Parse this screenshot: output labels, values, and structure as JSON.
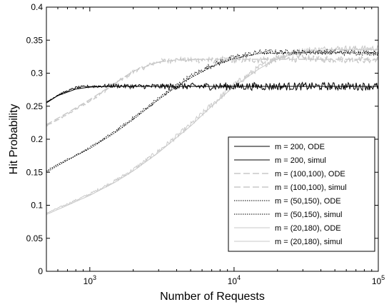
{
  "chart_data": {
    "type": "line",
    "xlabel": "Number of Requests",
    "ylabel": "Hit Probability",
    "xscale": "log",
    "xlim": [
      500,
      100000
    ],
    "ylim": [
      0,
      0.4
    ],
    "grid": false,
    "legend_position": "bottom-right",
    "x_ticks": [
      {
        "value": 1000,
        "base": "10",
        "exp": "3"
      },
      {
        "value": 10000,
        "base": "10",
        "exp": "4"
      },
      {
        "value": 100000,
        "base": "10",
        "exp": "5"
      }
    ],
    "y_ticks": [
      "0",
      "0.05",
      "0.1",
      "0.15",
      "0.2",
      "0.25",
      "0.3",
      "0.35",
      "0.4"
    ],
    "series": [
      {
        "name": "m = 200, ODE",
        "color": "#000000",
        "dash": "solid",
        "noise": 0,
        "x": [
          500,
          600,
          800,
          1000,
          1500,
          2000,
          3000,
          5000,
          10000,
          30000,
          100000
        ],
        "y": [
          0.255,
          0.266,
          0.276,
          0.279,
          0.28,
          0.28,
          0.28,
          0.28,
          0.28,
          0.28,
          0.28
        ]
      },
      {
        "name": "m = 200, simul",
        "color": "#000000",
        "dash": "solid",
        "noise": 0.006,
        "x": [
          500,
          600,
          800,
          1000,
          1500,
          2000,
          3000,
          5000,
          10000,
          30000,
          100000
        ],
        "y": [
          0.256,
          0.267,
          0.278,
          0.28,
          0.281,
          0.28,
          0.28,
          0.28,
          0.28,
          0.28,
          0.28
        ]
      },
      {
        "name": "m = (100,100), ODE",
        "color": "#c8c8c8",
        "dash": "long",
        "noise": 0,
        "x": [
          500,
          700,
          1000,
          1500,
          2000,
          3000,
          4000,
          6000,
          10000,
          30000,
          100000
        ],
        "y": [
          0.222,
          0.24,
          0.26,
          0.285,
          0.303,
          0.317,
          0.32,
          0.321,
          0.321,
          0.321,
          0.321
        ]
      },
      {
        "name": "m = (100,100), simul",
        "color": "#c8c8c8",
        "dash": "long",
        "noise": 0.005,
        "x": [
          500,
          700,
          1000,
          1500,
          2000,
          3000,
          4000,
          6000,
          10000,
          30000,
          100000
        ],
        "y": [
          0.22,
          0.238,
          0.258,
          0.284,
          0.302,
          0.318,
          0.32,
          0.32,
          0.32,
          0.322,
          0.32
        ]
      },
      {
        "name": "m = (50,150), ODE",
        "color": "#000000",
        "dash": "dot",
        "noise": 0,
        "x": [
          500,
          600,
          800,
          1000,
          1500,
          2000,
          3000,
          4000,
          5000,
          7000,
          10000,
          15000,
          30000,
          100000
        ],
        "y": [
          0.15,
          0.16,
          0.175,
          0.186,
          0.21,
          0.23,
          0.26,
          0.28,
          0.293,
          0.31,
          0.322,
          0.33,
          0.331,
          0.331
        ]
      },
      {
        "name": "m = (50,150), simul",
        "color": "#000000",
        "dash": "dot",
        "noise": 0.004,
        "x": [
          500,
          600,
          800,
          1000,
          1500,
          2000,
          3000,
          4000,
          5000,
          7000,
          10000,
          15000,
          30000,
          100000
        ],
        "y": [
          0.152,
          0.162,
          0.176,
          0.187,
          0.212,
          0.232,
          0.262,
          0.282,
          0.295,
          0.312,
          0.324,
          0.332,
          0.332,
          0.331
        ]
      },
      {
        "name": "m = (20,180), ODE",
        "color": "#c8c8c8",
        "dash": "solid",
        "noise": 0,
        "x": [
          500,
          700,
          1000,
          1500,
          2000,
          3000,
          5000,
          7000,
          10000,
          15000,
          20000,
          30000,
          50000,
          100000
        ],
        "y": [
          0.086,
          0.1,
          0.115,
          0.135,
          0.152,
          0.18,
          0.22,
          0.25,
          0.28,
          0.307,
          0.322,
          0.333,
          0.336,
          0.336
        ]
      },
      {
        "name": "m = (20,180), simul",
        "color": "#c8c8c8",
        "dash": "solid",
        "noise": 0.005,
        "x": [
          500,
          700,
          1000,
          1500,
          2000,
          3000,
          5000,
          7000,
          10000,
          15000,
          20000,
          30000,
          50000,
          100000
        ],
        "y": [
          0.088,
          0.102,
          0.117,
          0.137,
          0.154,
          0.182,
          0.222,
          0.252,
          0.282,
          0.309,
          0.324,
          0.334,
          0.337,
          0.337
        ]
      }
    ]
  }
}
